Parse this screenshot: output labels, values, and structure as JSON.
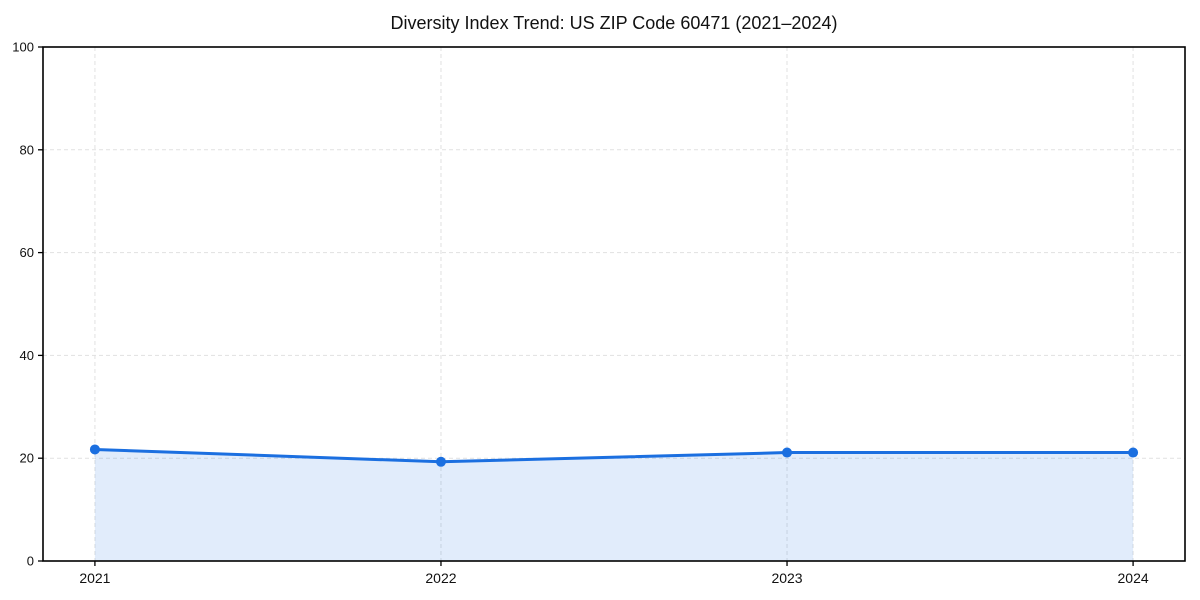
{
  "chart_data": {
    "type": "area",
    "title": "Diversity Index Trend: US ZIP Code 60471 (2021–2024)",
    "x": [
      2021,
      2022,
      2023,
      2024
    ],
    "x_labels": [
      "2021",
      "2022",
      "2023",
      "2024"
    ],
    "series": [
      {
        "name": "Diversity Index",
        "values": [
          21.7,
          19.3,
          21.1,
          21.1
        ]
      }
    ],
    "xlabel": "",
    "ylabel": "",
    "ylim": [
      0,
      100
    ],
    "yticks": [
      0,
      20,
      40,
      60,
      80,
      100
    ],
    "x_margin_fraction": 0.05,
    "grid": "dashed",
    "legend_position": "none",
    "colors": {
      "line": "#1b6fe0",
      "marker": "#1b6fe0",
      "area_fill": "rgba(27, 111, 224, 0.13)",
      "grid": "#e1e1e1",
      "spine": "#000000",
      "tick_text": "#111111",
      "background": "#ffffff"
    }
  }
}
